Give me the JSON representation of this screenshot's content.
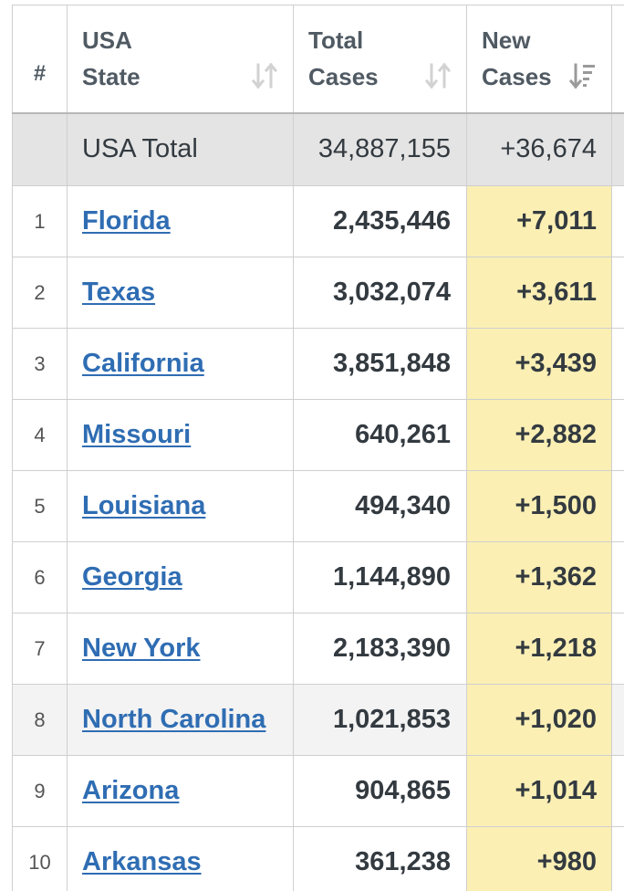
{
  "header": {
    "num": "#",
    "state_line1": "USA",
    "state_line2": "State",
    "total_line1": "Total",
    "total_line2": "Cases",
    "new_line1": "New",
    "new_line2": "Cases"
  },
  "sort_icons": {
    "state": "sort-both-icon",
    "total": "sort-both-icon",
    "new": "sort-descending-icon"
  },
  "colors": {
    "link": "#2f6db3",
    "new_cases_highlight": "#fbefb4",
    "total_row_bg": "#e4e4e4"
  },
  "total_row": {
    "label": "USA Total",
    "total_cases": "34,887,155",
    "new_cases": "+36,674"
  },
  "rows": [
    {
      "rank": "1",
      "state": "Florida",
      "total_cases": "2,435,446",
      "new_cases": "+7,011"
    },
    {
      "rank": "2",
      "state": "Texas",
      "total_cases": "3,032,074",
      "new_cases": "+3,611"
    },
    {
      "rank": "3",
      "state": "California",
      "total_cases": "3,851,848",
      "new_cases": "+3,439"
    },
    {
      "rank": "4",
      "state": "Missouri",
      "total_cases": "640,261",
      "new_cases": "+2,882"
    },
    {
      "rank": "5",
      "state": "Louisiana",
      "total_cases": "494,340",
      "new_cases": "+1,500"
    },
    {
      "rank": "6",
      "state": "Georgia",
      "total_cases": "1,144,890",
      "new_cases": "+1,362"
    },
    {
      "rank": "7",
      "state": "New York",
      "total_cases": "2,183,390",
      "new_cases": "+1,218"
    },
    {
      "rank": "8",
      "state": "North Carolina",
      "total_cases": "1,021,853",
      "new_cases": "+1,020"
    },
    {
      "rank": "9",
      "state": "Arizona",
      "total_cases": "904,865",
      "new_cases": "+1,014"
    },
    {
      "rank": "10",
      "state": "Arkansas",
      "total_cases": "361,238",
      "new_cases": "+980"
    }
  ]
}
